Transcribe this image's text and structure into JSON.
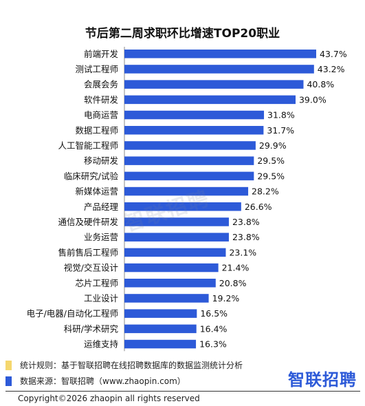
{
  "chart_data": {
    "type": "bar",
    "orientation": "horizontal",
    "title": "节后第二周求职环比增速TOP20职业",
    "categories": [
      "前端开发",
      "测试工程师",
      "会展会务",
      "软件研发",
      "电商运营",
      "数据工程师",
      "人工智能工程师",
      "移动研发",
      "临床研究/试验",
      "新媒体运营",
      "产品经理",
      "通信及硬件研发",
      "业务运营",
      "售前售后工程师",
      "视觉/交互设计",
      "芯片工程师",
      "工业设计",
      "电子/电器/自动化工程师",
      "科研/学术研究",
      "运维支持"
    ],
    "values": [
      43.7,
      43.2,
      40.8,
      39.0,
      31.8,
      31.7,
      29.9,
      29.5,
      29.5,
      28.2,
      26.6,
      23.8,
      23.8,
      23.1,
      21.4,
      20.8,
      19.2,
      16.5,
      16.4,
      16.3
    ],
    "value_labels": [
      "43.7%",
      "43.2%",
      "40.8%",
      "39.0%",
      "31.8%",
      "31.7%",
      "29.9%",
      "29.5%",
      "29.5%",
      "28.2%",
      "26.6%",
      "23.8%",
      "23.8%",
      "23.1%",
      "21.4%",
      "20.8%",
      "19.2%",
      "16.5%",
      "16.4%",
      "16.3%"
    ],
    "xlim": [
      0,
      43.7
    ],
    "grid": false,
    "bar_color": "#2d5ad8"
  },
  "watermark": "智联招聘",
  "notes": [
    {
      "text": "统计规则：基于智联招聘在线招聘数据库的数据监测统计分析",
      "color": "#f5d76e"
    },
    {
      "text": "数据来源：智联招聘（www.zhaopin.com）",
      "color": "#2d5ad8"
    }
  ],
  "logo": "智联招聘",
  "copyright": "Copyright©2026 zhaopin all rights reserved"
}
